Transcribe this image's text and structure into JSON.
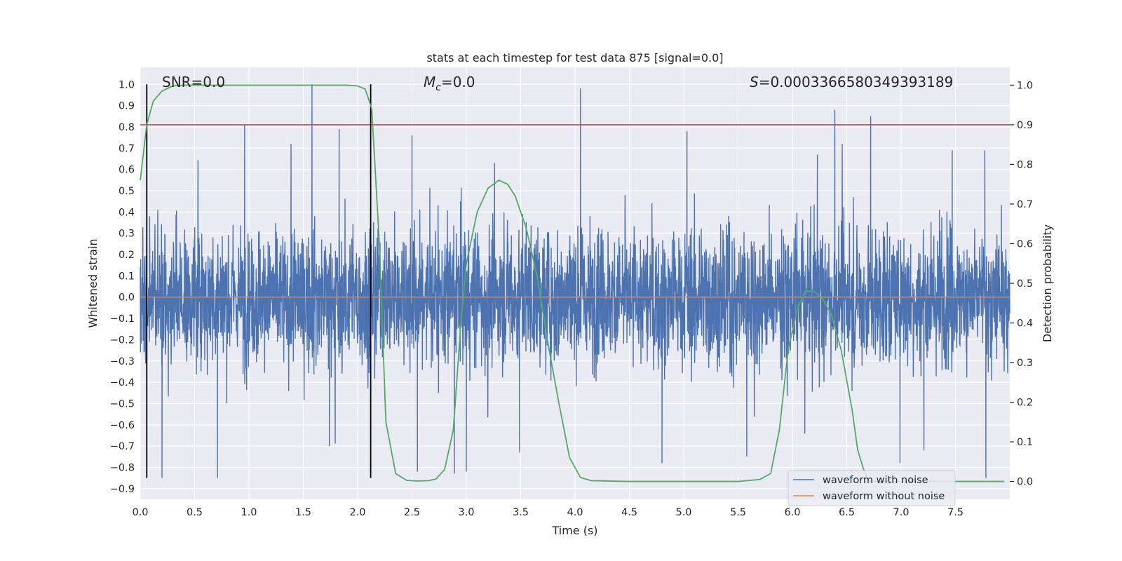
{
  "chart_data": {
    "type": "line",
    "title": "stats at each timestep for test data 875 [signal=0.0]",
    "xlabel": "Time (s)",
    "ylabel_left": "Whitened strain",
    "ylabel_right": "Detection probability",
    "xlim": [
      0.0,
      8.0
    ],
    "ylim_left": [
      -0.95,
      1.08
    ],
    "ylim_right": [
      -0.045,
      1.045
    ],
    "x_ticks": [
      "0.0",
      "0.5",
      "1.0",
      "1.5",
      "2.0",
      "2.5",
      "3.0",
      "3.5",
      "4.0",
      "4.5",
      "5.0",
      "5.5",
      "6.0",
      "6.5",
      "7.0",
      "7.5"
    ],
    "y_ticks_left": [
      "1.0",
      "0.9",
      "0.8",
      "0.7",
      "0.6",
      "0.5",
      "0.4",
      "0.3",
      "0.2",
      "0.1",
      "0.0",
      "-0.1",
      "-0.2",
      "-0.3",
      "-0.4",
      "-0.5",
      "-0.6",
      "-0.7",
      "-0.8",
      "-0.9"
    ],
    "y_ticks_right": [
      "1.0",
      "0.9",
      "0.8",
      "0.7",
      "0.6",
      "0.5",
      "0.4",
      "0.3",
      "0.2",
      "0.1",
      "0.0"
    ],
    "grid": true,
    "annotations": {
      "snr": "SNR=0.0",
      "mc_symbol": "M",
      "mc_subscript": "c",
      "mc_value": "=0.0",
      "s_symbol": "S",
      "s_value": "=0.0003366580349393189"
    },
    "series": [
      {
        "name": "waveform with noise",
        "color": "#4c72b0",
        "description_values": "dense noise, mostly within ±0.3, spikes up to 1.0 and down to -0.85",
        "spikes_up": [
          [
            1.58,
            1.0
          ],
          [
            4.05,
            0.98
          ],
          [
            0.96,
            0.81
          ],
          [
            6.39,
            0.88
          ],
          [
            6.72,
            0.85
          ],
          [
            5.03,
            0.78
          ],
          [
            7.77,
            0.69
          ],
          [
            2.5,
            0.76
          ],
          [
            1.83,
            0.79
          ],
          [
            7.47,
            0.69
          ],
          [
            6.23,
            0.67
          ],
          [
            3.26,
            0.63
          ]
        ],
        "spikes_down": [
          [
            0.2,
            -0.85
          ],
          [
            0.71,
            -0.85
          ],
          [
            2.55,
            -0.82
          ],
          [
            3.0,
            -0.82
          ],
          [
            3.49,
            -0.73
          ],
          [
            4.8,
            -0.78
          ],
          [
            5.58,
            -0.75
          ],
          [
            6.99,
            -0.78
          ],
          [
            7.78,
            -0.85
          ],
          [
            7.21,
            -0.72
          ],
          [
            1.74,
            -0.7
          ],
          [
            2.89,
            -0.83
          ]
        ]
      },
      {
        "name": "waveform without noise",
        "color": "#dd8452",
        "x": [
          0.0,
          8.0
        ],
        "y": [
          0.0,
          0.0
        ]
      },
      {
        "name": "detection probability",
        "color": "#55a868",
        "axis": "right",
        "x": [
          0.0,
          0.06,
          0.12,
          0.2,
          0.3,
          0.4,
          0.6,
          1.0,
          1.5,
          1.9,
          2.0,
          2.07,
          2.13,
          2.2,
          2.26,
          2.35,
          2.45,
          2.55,
          2.65,
          2.72,
          2.8,
          2.88,
          2.95,
          3.0,
          3.1,
          3.2,
          3.3,
          3.38,
          3.45,
          3.55,
          3.65,
          3.75,
          3.85,
          3.95,
          4.05,
          4.15,
          4.5,
          5.0,
          5.5,
          5.7,
          5.8,
          5.88,
          5.96,
          6.05,
          6.12,
          6.2,
          6.28,
          6.36,
          6.45,
          6.55,
          6.6,
          6.65,
          6.7,
          7.0,
          7.5,
          7.95
        ],
        "y": [
          0.76,
          0.9,
          0.96,
          0.985,
          0.998,
          1.0,
          1.0,
          1.0,
          1.0,
          1.0,
          0.998,
          0.99,
          0.94,
          0.6,
          0.15,
          0.02,
          0.003,
          0.001,
          0.002,
          0.006,
          0.03,
          0.13,
          0.4,
          0.55,
          0.68,
          0.74,
          0.76,
          0.75,
          0.72,
          0.64,
          0.52,
          0.35,
          0.2,
          0.06,
          0.01,
          0.002,
          0.0,
          0.0,
          0.0,
          0.005,
          0.02,
          0.13,
          0.33,
          0.44,
          0.48,
          0.48,
          0.46,
          0.42,
          0.33,
          0.18,
          0.08,
          0.035,
          0.0,
          0.0,
          0.0,
          0.0
        ]
      }
    ],
    "horizontal_lines": [
      {
        "color": "#c44e52",
        "axis": "right",
        "y": 0.9
      }
    ],
    "vertical_lines": [
      {
        "color": "#000000",
        "x": 0.06,
        "y_range": [
          -0.85,
          1.0
        ]
      },
      {
        "color": "#000000",
        "x": 2.12,
        "y_range": [
          -0.85,
          1.0
        ]
      }
    ],
    "legend": {
      "placement": "lower-right",
      "entries": [
        "waveform with noise",
        "waveform without noise"
      ]
    }
  }
}
